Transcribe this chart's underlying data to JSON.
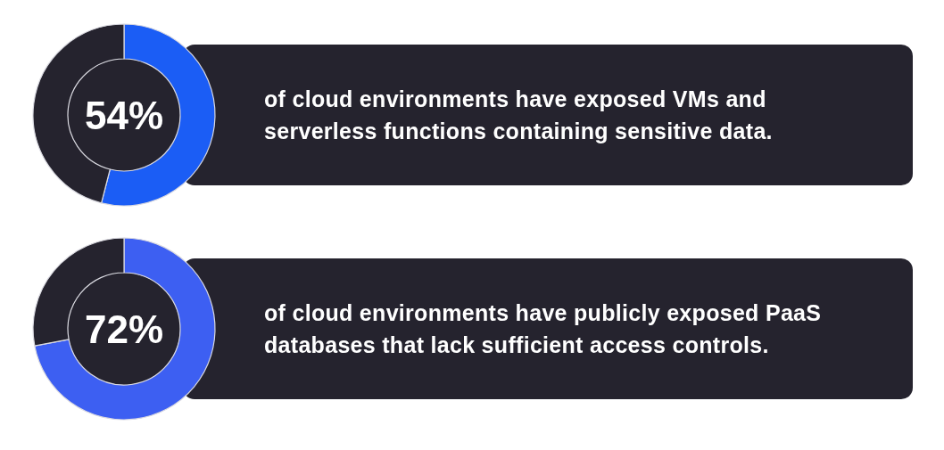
{
  "chart_data": [
    {
      "type": "donut",
      "categories": [
        null,
        null
      ],
      "values": [
        54,
        46
      ],
      "colors": [
        "#1b5df5",
        "#25232e"
      ],
      "value_labels": [
        "54%",
        null
      ],
      "annotations": [
        "of cloud environments have exposed VMs and serverless functions containing sensitive data."
      ]
    },
    {
      "type": "donut",
      "categories": [
        null,
        null
      ],
      "values": [
        72,
        28
      ],
      "colors": [
        "#3d5ff2",
        "#25232e"
      ],
      "value_labels": [
        "72%",
        null
      ],
      "annotations": [
        "of cloud environments have publicly exposed PaaS databases that lack sufficient access controls."
      ]
    }
  ]
}
